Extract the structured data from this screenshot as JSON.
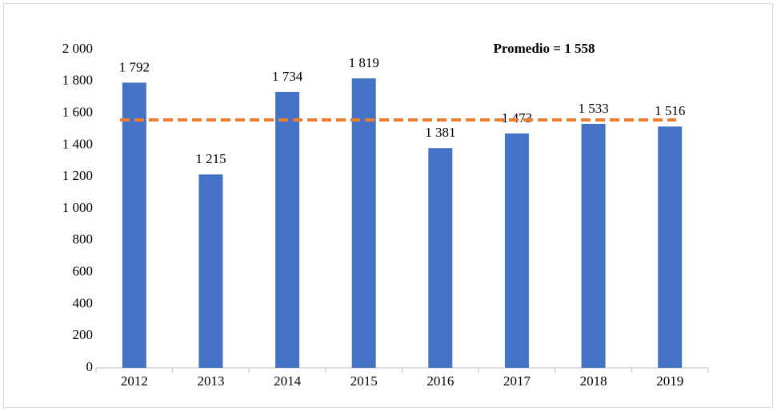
{
  "chart_data": {
    "type": "bar",
    "categories": [
      "2012",
      "2013",
      "2014",
      "2015",
      "2016",
      "2017",
      "2018",
      "2019"
    ],
    "values": [
      1792,
      1215,
      1734,
      1819,
      1381,
      1473,
      1533,
      1516
    ],
    "value_labels": [
      "1 792",
      "1 215",
      "1 734",
      "1 819",
      "1 381",
      "1 473",
      "1 533",
      "1 516"
    ],
    "color": "#4472c4",
    "average": {
      "value": 1558,
      "label": "Promedio = 1 558",
      "color": "#ed7d31"
    },
    "ylim": [
      0,
      2000
    ],
    "yticks": [
      0,
      200,
      400,
      600,
      800,
      {
        "value": 1000,
        "label": "1 000"
      },
      {
        "value": 1200,
        "label": "1 200"
      },
      {
        "value": 1400,
        "label": "1 400"
      },
      {
        "value": 1600,
        "label": "1 600"
      },
      {
        "value": 1800,
        "label": "1 800"
      },
      {
        "value": 2000,
        "label": "2 000"
      }
    ],
    "grid": false
  }
}
